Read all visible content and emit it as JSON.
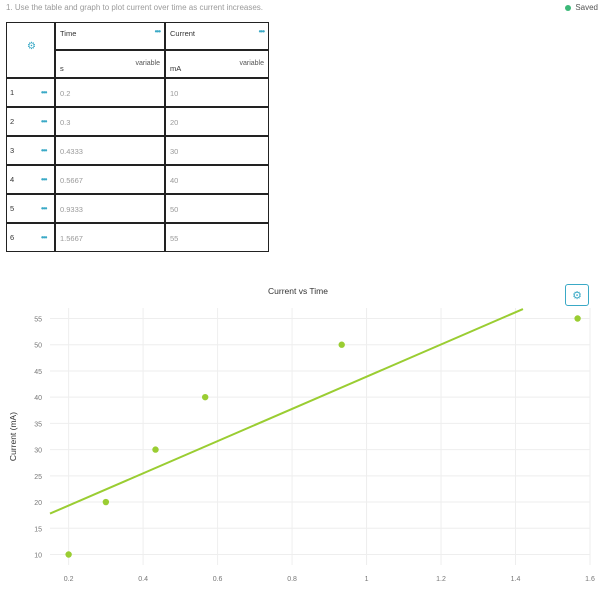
{
  "question": "1. Use the table and graph to plot current over time as current increases.",
  "status": {
    "label": "Saved",
    "color": "#3cb878"
  },
  "table": {
    "settings_icon": "gear-icon",
    "columns": [
      {
        "name": "Time",
        "unit": "s",
        "type": "variable"
      },
      {
        "name": "Current",
        "unit": "mA",
        "type": "variable"
      }
    ],
    "menu_glyph": "•••",
    "rows": [
      {
        "num": "1",
        "time": "0.2",
        "current": "10"
      },
      {
        "num": "2",
        "time": "0.3",
        "current": "20"
      },
      {
        "num": "3",
        "time": "0.4333",
        "current": "30"
      },
      {
        "num": "4",
        "time": "0.5667",
        "current": "40"
      },
      {
        "num": "5",
        "time": "0.9333",
        "current": "50"
      },
      {
        "num": "6",
        "time": "1.5667",
        "current": "55"
      }
    ]
  },
  "chart_data": {
    "type": "scatter",
    "title": "Current vs Time",
    "xlabel": "",
    "ylabel": "Current (mA)",
    "xlim": [
      0.15,
      1.6
    ],
    "ylim": [
      8,
      57
    ],
    "xticks": [
      0.2,
      0.4,
      0.6,
      0.8,
      1,
      1.2,
      1.4,
      1.6
    ],
    "xtick_labels": [
      "0.2",
      "0.4",
      "0.6",
      "0.8",
      "1",
      "1.2",
      "1.4",
      "1.6"
    ],
    "yticks": [
      10,
      15,
      20,
      25,
      30,
      35,
      40,
      45,
      50,
      55
    ],
    "ytick_labels": [
      "10",
      "15",
      "20",
      "25",
      "30",
      "35",
      "40",
      "45",
      "50",
      "55"
    ],
    "grid": true,
    "series": [
      {
        "points": [
          [
            0.2,
            10
          ],
          [
            0.3,
            20
          ],
          [
            0.4333,
            30
          ],
          [
            0.5667,
            40
          ],
          [
            0.9333,
            50
          ],
          [
            1.5667,
            55
          ]
        ],
        "color": "#9acd32"
      }
    ],
    "fit_line": {
      "x": [
        0.15,
        1.42
      ],
      "y": [
        17.8,
        56.8
      ],
      "color": "#9acd32"
    },
    "settings_icon": "gear-icon"
  }
}
